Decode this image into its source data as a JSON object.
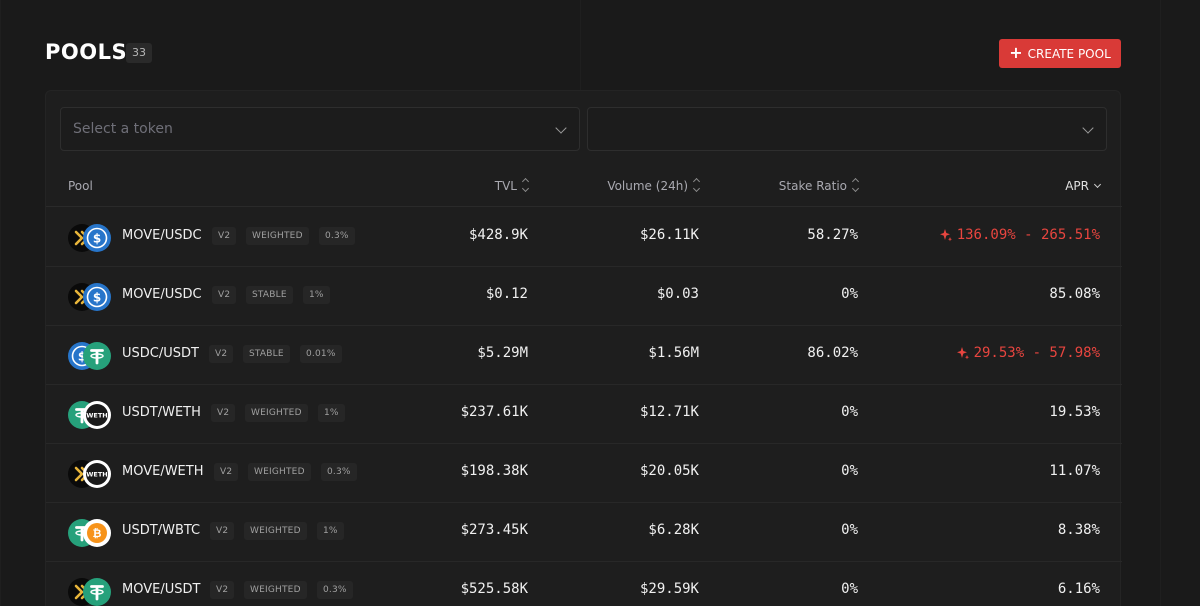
{
  "header": {
    "title": "POOLS",
    "count": "33",
    "create_label": "CREATE POOL"
  },
  "filters": {
    "token_placeholder": "Select a token",
    "second_value": ""
  },
  "columns": {
    "pool": "Pool",
    "tvl": "TVL",
    "volume": "Volume (24h)",
    "stake": "Stake Ratio",
    "apr": "APR"
  },
  "colors": {
    "accent": "#d93a37",
    "apr_hot": "#e8453f",
    "background": "#1a1a1a"
  },
  "rows": [
    {
      "pair": "MOVE/USDC",
      "tokens": [
        "move-icon",
        "usdc-icon"
      ],
      "version": "V2",
      "type": "WEIGHTED",
      "fee": "0.3%",
      "tvl": "$428.9K",
      "volume": "$26.11K",
      "stake": "58.27%",
      "apr": "136.09% - 265.51%",
      "hot": true
    },
    {
      "pair": "MOVE/USDC",
      "tokens": [
        "move-icon",
        "usdc-icon"
      ],
      "version": "V2",
      "type": "STABLE",
      "fee": "1%",
      "tvl": "$0.12",
      "volume": "$0.03",
      "stake": "0%",
      "apr": "85.08%",
      "hot": false
    },
    {
      "pair": "USDC/USDT",
      "tokens": [
        "usdc-icon",
        "usdt-icon"
      ],
      "version": "V2",
      "type": "STABLE",
      "fee": "0.01%",
      "tvl": "$5.29M",
      "volume": "$1.56M",
      "stake": "86.02%",
      "apr": "29.53% - 57.98%",
      "hot": true
    },
    {
      "pair": "USDT/WETH",
      "tokens": [
        "usdt-icon",
        "weth-icon"
      ],
      "version": "V2",
      "type": "WEIGHTED",
      "fee": "1%",
      "tvl": "$237.61K",
      "volume": "$12.71K",
      "stake": "0%",
      "apr": "19.53%",
      "hot": false
    },
    {
      "pair": "MOVE/WETH",
      "tokens": [
        "move-icon",
        "weth-icon"
      ],
      "version": "V2",
      "type": "WEIGHTED",
      "fee": "0.3%",
      "tvl": "$198.38K",
      "volume": "$20.05K",
      "stake": "0%",
      "apr": "11.07%",
      "hot": false
    },
    {
      "pair": "USDT/WBTC",
      "tokens": [
        "usdt-icon",
        "wbtc-icon"
      ],
      "version": "V2",
      "type": "WEIGHTED",
      "fee": "1%",
      "tvl": "$273.45K",
      "volume": "$6.28K",
      "stake": "0%",
      "apr": "8.38%",
      "hot": false
    },
    {
      "pair": "MOVE/USDT",
      "tokens": [
        "move-icon",
        "usdt-icon"
      ],
      "version": "V2",
      "type": "WEIGHTED",
      "fee": "0.3%",
      "tvl": "$525.58K",
      "volume": "$29.59K",
      "stake": "0%",
      "apr": "6.16%",
      "hot": false
    }
  ]
}
